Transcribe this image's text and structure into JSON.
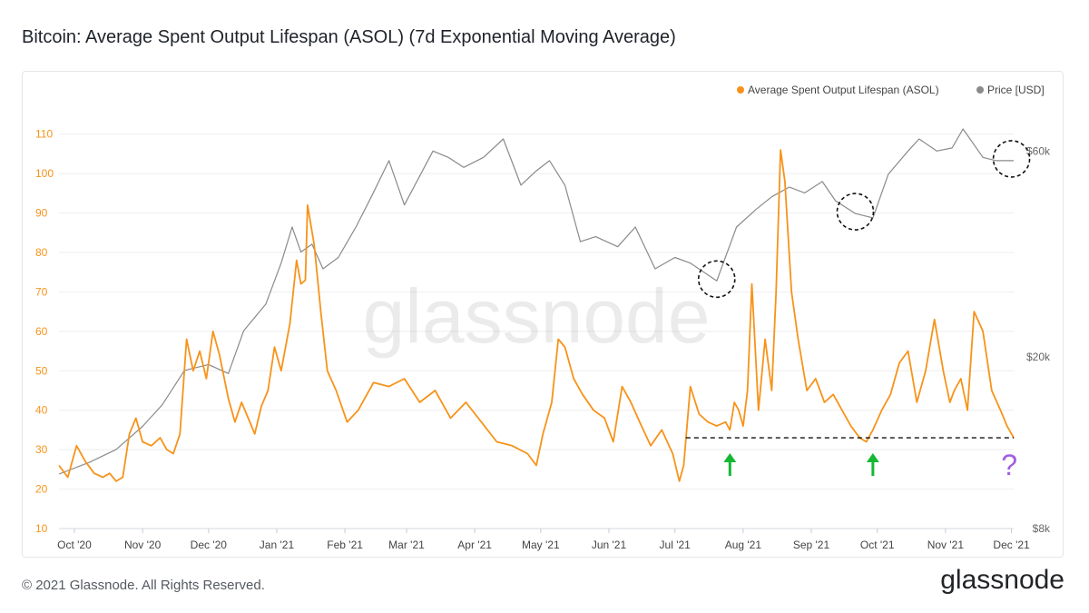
{
  "title": "Bitcoin: Average Spent Output Lifespan (ASOL) (7d Exponential Moving Average)",
  "footer": "© 2021 Glassnode. All Rights Reserved.",
  "brand": "glassnode",
  "watermark": "glassnode",
  "question_mark": "?",
  "colors": {
    "asol": "#f7931a",
    "price": "#8a8a8a",
    "arrow": "#14b833",
    "question": "#a15ee0",
    "grid": "#eeeeee"
  },
  "chart_data": {
    "type": "line",
    "title": "Bitcoin: Average Spent Output Lifespan (ASOL) (7d Exponential Moving Average)",
    "legend_position": "top-right",
    "x_ticks": [
      "Oct '20",
      "Nov '20",
      "Dec '20",
      "Jan '21",
      "Feb '21",
      "Mar '21",
      "Apr '21",
      "May '21",
      "Jun '21",
      "Jul '21",
      "Aug '21",
      "Sep '21",
      "Oct '21",
      "Nov '21",
      "Dec '21"
    ],
    "x_range": [
      "2020-09-24",
      "2021-12-02"
    ],
    "y_left": {
      "ticks": [
        10,
        20,
        30,
        40,
        50,
        60,
        70,
        80,
        90,
        100,
        110
      ],
      "ylim": [
        10,
        112
      ],
      "color": "#f7931a"
    },
    "y_right": {
      "ticks": [
        "$8k",
        "$20k",
        "$60k"
      ],
      "tick_values": [
        8000,
        20000,
        60000
      ],
      "scale": "log",
      "ylim": [
        8000,
        68500
      ]
    },
    "grid": true,
    "series": [
      {
        "name": "Average Spent Output Lifespan (ASOL)",
        "axis": "left",
        "color": "#f7931a",
        "x": [
          "2020-09-24",
          "2020-09-28",
          "2020-10-02",
          "2020-10-06",
          "2020-10-10",
          "2020-10-14",
          "2020-10-17",
          "2020-10-20",
          "2020-10-23",
          "2020-10-26",
          "2020-10-29",
          "2020-11-01",
          "2020-11-05",
          "2020-11-09",
          "2020-11-12",
          "2020-11-15",
          "2020-11-18",
          "2020-11-21",
          "2020-11-24",
          "2020-11-27",
          "2020-11-30",
          "2020-12-03",
          "2020-12-06",
          "2020-12-10",
          "2020-12-13",
          "2020-12-16",
          "2020-12-19",
          "2020-12-22",
          "2020-12-25",
          "2020-12-28",
          "2020-12-31",
          "2021-01-03",
          "2021-01-07",
          "2021-01-10",
          "2021-01-12",
          "2021-01-14",
          "2021-01-15",
          "2021-01-18",
          "2021-01-21",
          "2021-01-24",
          "2021-01-28",
          "2021-02-02",
          "2021-02-07",
          "2021-02-14",
          "2021-02-21",
          "2021-02-28",
          "2021-03-07",
          "2021-03-14",
          "2021-03-21",
          "2021-03-28",
          "2021-04-04",
          "2021-04-11",
          "2021-04-18",
          "2021-04-25",
          "2021-04-29",
          "2021-05-02",
          "2021-05-06",
          "2021-05-09",
          "2021-05-12",
          "2021-05-16",
          "2021-05-20",
          "2021-05-25",
          "2021-05-30",
          "2021-06-03",
          "2021-06-07",
          "2021-06-11",
          "2021-06-15",
          "2021-06-20",
          "2021-06-25",
          "2021-06-30",
          "2021-07-03",
          "2021-07-05",
          "2021-07-08",
          "2021-07-12",
          "2021-07-16",
          "2021-07-20",
          "2021-07-24",
          "2021-07-26",
          "2021-07-28",
          "2021-07-30",
          "2021-08-01",
          "2021-08-03",
          "2021-08-05",
          "2021-08-08",
          "2021-08-11",
          "2021-08-14",
          "2021-08-16",
          "2021-08-18",
          "2021-08-20",
          "2021-08-23",
          "2021-08-26",
          "2021-08-30",
          "2021-09-03",
          "2021-09-07",
          "2021-09-11",
          "2021-09-15",
          "2021-09-19",
          "2021-09-23",
          "2021-09-26",
          "2021-09-29",
          "2021-10-03",
          "2021-10-07",
          "2021-10-11",
          "2021-10-15",
          "2021-10-19",
          "2021-10-23",
          "2021-10-27",
          "2021-10-31",
          "2021-11-03",
          "2021-11-05",
          "2021-11-08",
          "2021-11-11",
          "2021-11-14",
          "2021-11-18",
          "2021-11-22",
          "2021-11-26",
          "2021-11-29",
          "2021-12-02"
        ],
        "values": [
          26,
          23,
          31,
          27,
          24,
          23,
          24,
          22,
          23,
          34,
          38,
          32,
          31,
          33,
          30,
          29,
          34,
          58,
          50,
          55,
          48,
          60,
          54,
          43,
          37,
          42,
          38,
          34,
          41,
          45,
          56,
          50,
          62,
          78,
          72,
          73,
          92,
          82,
          65,
          50,
          45,
          37,
          40,
          47,
          46,
          48,
          42,
          45,
          38,
          42,
          37,
          32,
          31,
          29,
          26,
          34,
          42,
          58,
          56,
          48,
          44,
          40,
          38,
          32,
          46,
          42,
          37,
          31,
          35,
          29,
          22,
          26,
          46,
          39,
          37,
          36,
          37,
          35,
          42,
          40,
          36,
          45,
          72,
          40,
          58,
          45,
          70,
          106,
          98,
          70,
          58,
          45,
          48,
          42,
          44,
          40,
          36,
          33,
          32,
          35,
          40,
          44,
          52,
          55,
          42,
          50,
          63,
          50,
          42,
          45,
          48,
          40,
          65,
          60,
          45,
          40,
          36,
          33
        ]
      },
      {
        "name": "Price [USD]",
        "axis": "right",
        "color": "#8a8a8a",
        "x": [
          "2020-09-24",
          "2020-10-08",
          "2020-10-20",
          "2020-11-01",
          "2020-11-10",
          "2020-11-20",
          "2020-12-01",
          "2020-12-10",
          "2020-12-17",
          "2020-12-27",
          "2021-01-03",
          "2021-01-08",
          "2021-01-12",
          "2021-01-17",
          "2021-01-22",
          "2021-01-29",
          "2021-02-06",
          "2021-02-13",
          "2021-02-21",
          "2021-02-28",
          "2021-03-13",
          "2021-03-20",
          "2021-03-27",
          "2021-04-05",
          "2021-04-14",
          "2021-04-22",
          "2021-04-29",
          "2021-05-05",
          "2021-05-12",
          "2021-05-19",
          "2021-05-26",
          "2021-06-05",
          "2021-06-13",
          "2021-06-22",
          "2021-07-01",
          "2021-07-08",
          "2021-07-20",
          "2021-07-29",
          "2021-08-07",
          "2021-08-14",
          "2021-08-22",
          "2021-08-29",
          "2021-09-06",
          "2021-09-12",
          "2021-09-21",
          "2021-09-29",
          "2021-10-06",
          "2021-10-15",
          "2021-10-20",
          "2021-10-28",
          "2021-11-04",
          "2021-11-09",
          "2021-11-18",
          "2021-11-24",
          "2021-12-02"
        ],
        "values": [
          10700,
          11400,
          12200,
          13800,
          15500,
          18600,
          19200,
          18300,
          23000,
          26500,
          33000,
          40000,
          35000,
          36500,
          32000,
          34000,
          40000,
          47000,
          57000,
          45000,
          60000,
          58000,
          55000,
          58000,
          64000,
          50000,
          54000,
          57000,
          50000,
          37000,
          38000,
          36000,
          40000,
          32000,
          34000,
          33000,
          30000,
          40000,
          44000,
          47000,
          49500,
          48000,
          51000,
          46000,
          43000,
          42000,
          53000,
          60000,
          64000,
          60000,
          61000,
          67500,
          58000,
          57000,
          57000
        ]
      }
    ]
  },
  "annotations": {
    "dashed_level_asol": 33,
    "dashed_range": [
      "2021-07-06",
      "2021-12-02"
    ],
    "arrow_dates": [
      "2021-07-26",
      "2021-09-29"
    ],
    "circle_dates": [
      "2021-07-20",
      "2021-09-21",
      "2021-12-01"
    ],
    "question_date": "2021-11-30"
  }
}
